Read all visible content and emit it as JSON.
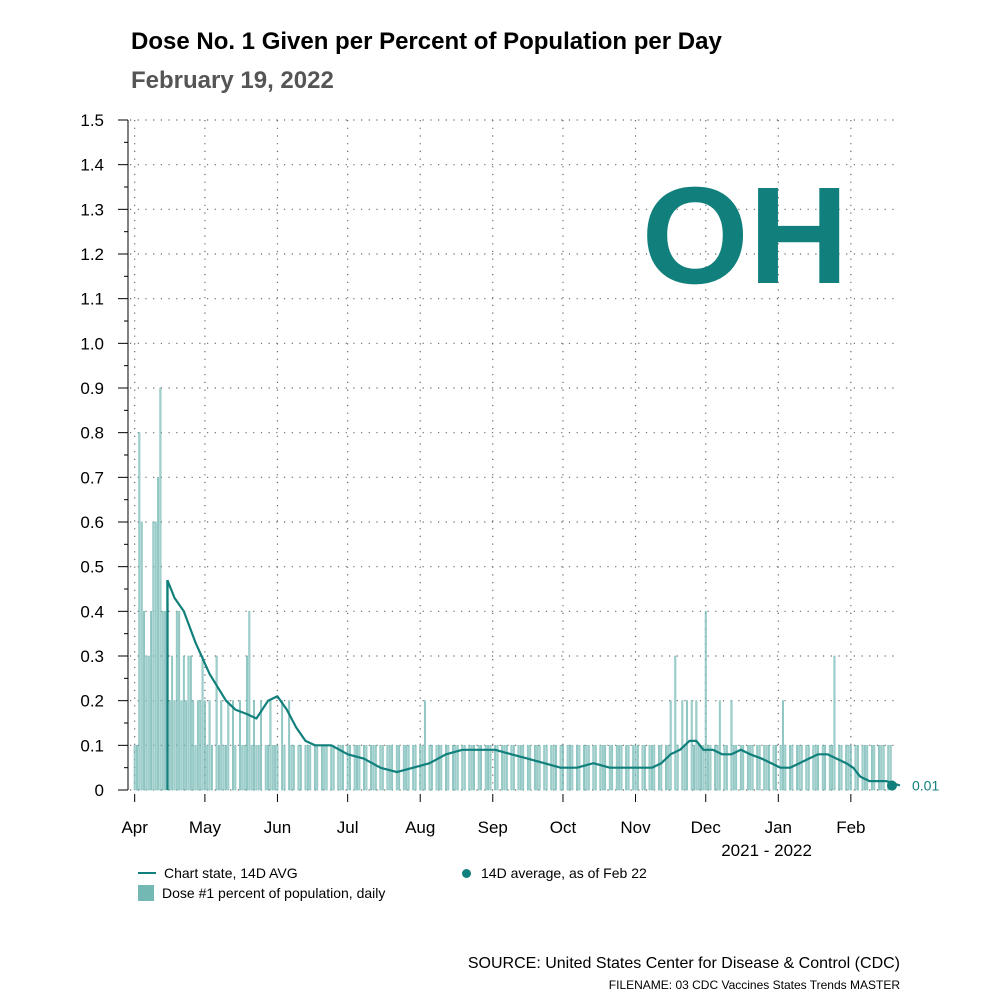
{
  "chart_data": {
    "type": "bar+line",
    "title": "Dose No. 1 Given per Percent of Population per Day",
    "subtitle": "February 19, 2022",
    "state_label": "OH",
    "ylim": [
      0,
      1.5
    ],
    "yticks": [
      "1.5",
      "1.4",
      "1.3",
      "1.2",
      "1.1",
      "1.0",
      "0.9",
      "0.8",
      "0.7",
      "0.6",
      "0.5",
      "0.4",
      "0.3",
      "0.2",
      "0.1",
      "0"
    ],
    "xlim": [
      "2021-03-30",
      "2022-02-22"
    ],
    "xticks": [
      {
        "label": "Apr",
        "date": "2021-04-01"
      },
      {
        "label": "May",
        "date": "2021-05-01"
      },
      {
        "label": "Jun",
        "date": "2021-06-01"
      },
      {
        "label": "Jul",
        "date": "2021-07-01"
      },
      {
        "label": "Aug",
        "date": "2021-08-01"
      },
      {
        "label": "Sep",
        "date": "2021-09-01"
      },
      {
        "label": "Oct",
        "date": "2021-10-01"
      },
      {
        "label": "Nov",
        "date": "2021-11-01"
      },
      {
        "label": "Dec",
        "date": "2021-12-01"
      },
      {
        "label": "Jan",
        "date": "2022-01-01"
      },
      {
        "label": "Feb",
        "date": "2022-02-01"
      }
    ],
    "xlabel": "2021 - 2022",
    "daily_bars_note": "Dose #1 percent of population, daily (values 0 to 0.1 most days; spikes listed below)",
    "daily_pattern": [
      0.1,
      0.1,
      0.0,
      0.1,
      0.1,
      0.1,
      0.0
    ],
    "daily_spikes": [
      {
        "day": 2,
        "value": 0.8
      },
      {
        "day": 3,
        "value": 0.6
      },
      {
        "day": 4,
        "value": 0.4
      },
      {
        "day": 5,
        "value": 0.3
      },
      {
        "day": 6,
        "value": 0.3
      },
      {
        "day": 7,
        "value": 0.4
      },
      {
        "day": 8,
        "value": 0.6
      },
      {
        "day": 9,
        "value": 0.6
      },
      {
        "day": 10,
        "value": 0.7
      },
      {
        "day": 11,
        "value": 0.9
      },
      {
        "day": 12,
        "value": 0.4
      },
      {
        "day": 13,
        "value": 0.4
      },
      {
        "day": 14,
        "value": 0.3
      },
      {
        "day": 15,
        "value": 0.2
      },
      {
        "day": 16,
        "value": 0.3
      },
      {
        "day": 17,
        "value": 0.2
      },
      {
        "day": 18,
        "value": 0.4
      },
      {
        "day": 19,
        "value": 0.4
      },
      {
        "day": 20,
        "value": 0.2
      },
      {
        "day": 21,
        "value": 0.3
      },
      {
        "day": 22,
        "value": 0.2
      },
      {
        "day": 23,
        "value": 0.3
      },
      {
        "day": 24,
        "value": 0.3
      },
      {
        "day": 25,
        "value": 0.2
      },
      {
        "day": 27,
        "value": 0.2
      },
      {
        "day": 28,
        "value": 0.2
      },
      {
        "day": 29,
        "value": 0.3
      },
      {
        "day": 30,
        "value": 0.2
      },
      {
        "day": 32,
        "value": 0.2
      },
      {
        "day": 35,
        "value": 0.3
      },
      {
        "day": 37,
        "value": 0.2
      },
      {
        "day": 40,
        "value": 0.2
      },
      {
        "day": 42,
        "value": 0.2
      },
      {
        "day": 45,
        "value": 0.2
      },
      {
        "day": 48,
        "value": 0.3
      },
      {
        "day": 49,
        "value": 0.4
      },
      {
        "day": 51,
        "value": 0.2
      },
      {
        "day": 54,
        "value": 0.2
      },
      {
        "day": 58,
        "value": 0.2
      },
      {
        "day": 63,
        "value": 0.2
      },
      {
        "day": 66,
        "value": 0.2
      },
      {
        "day": 124,
        "value": 0.2
      },
      {
        "day": 229,
        "value": 0.2
      },
      {
        "day": 231,
        "value": 0.3
      },
      {
        "day": 234,
        "value": 0.2
      },
      {
        "day": 236,
        "value": 0.2
      },
      {
        "day": 238,
        "value": 0.2
      },
      {
        "day": 240,
        "value": 0.2
      },
      {
        "day": 244,
        "value": 0.4
      },
      {
        "day": 250,
        "value": 0.2
      },
      {
        "day": 255,
        "value": 0.2
      },
      {
        "day": 262,
        "value": 0.1
      },
      {
        "day": 277,
        "value": 0.2
      },
      {
        "day": 290,
        "value": 0.1
      },
      {
        "day": 299,
        "value": 0.3
      },
      {
        "day": 301,
        "value": 0.1
      }
    ],
    "avg_series": {
      "name": "Chart state, 14D AVG",
      "points": [
        [
          "2021-04-15",
          0.47
        ],
        [
          "2021-04-18",
          0.43
        ],
        [
          "2021-04-22",
          0.4
        ],
        [
          "2021-04-27",
          0.33
        ],
        [
          "2021-05-03",
          0.26
        ],
        [
          "2021-05-10",
          0.2
        ],
        [
          "2021-05-14",
          0.18
        ],
        [
          "2021-05-19",
          0.17
        ],
        [
          "2021-05-23",
          0.16
        ],
        [
          "2021-05-28",
          0.2
        ],
        [
          "2021-06-01",
          0.21
        ],
        [
          "2021-06-05",
          0.18
        ],
        [
          "2021-06-09",
          0.14
        ],
        [
          "2021-06-13",
          0.11
        ],
        [
          "2021-06-17",
          0.1
        ],
        [
          "2021-06-24",
          0.1
        ],
        [
          "2021-07-01",
          0.08
        ],
        [
          "2021-07-08",
          0.07
        ],
        [
          "2021-07-15",
          0.05
        ],
        [
          "2021-07-22",
          0.04
        ],
        [
          "2021-07-29",
          0.05
        ],
        [
          "2021-08-05",
          0.06
        ],
        [
          "2021-08-12",
          0.08
        ],
        [
          "2021-08-19",
          0.09
        ],
        [
          "2021-08-26",
          0.09
        ],
        [
          "2021-09-02",
          0.09
        ],
        [
          "2021-09-09",
          0.08
        ],
        [
          "2021-09-16",
          0.07
        ],
        [
          "2021-09-23",
          0.06
        ],
        [
          "2021-09-30",
          0.05
        ],
        [
          "2021-10-07",
          0.05
        ],
        [
          "2021-10-14",
          0.06
        ],
        [
          "2021-10-21",
          0.05
        ],
        [
          "2021-10-28",
          0.05
        ],
        [
          "2021-11-04",
          0.05
        ],
        [
          "2021-11-08",
          0.05
        ],
        [
          "2021-11-12",
          0.06
        ],
        [
          "2021-11-16",
          0.08
        ],
        [
          "2021-11-20",
          0.09
        ],
        [
          "2021-11-24",
          0.11
        ],
        [
          "2021-11-27",
          0.11
        ],
        [
          "2021-11-30",
          0.09
        ],
        [
          "2021-12-04",
          0.09
        ],
        [
          "2021-12-08",
          0.08
        ],
        [
          "2021-12-12",
          0.08
        ],
        [
          "2021-12-16",
          0.09
        ],
        [
          "2021-12-20",
          0.08
        ],
        [
          "2021-12-25",
          0.07
        ],
        [
          "2021-12-29",
          0.06
        ],
        [
          "2022-01-02",
          0.05
        ],
        [
          "2022-01-06",
          0.05
        ],
        [
          "2022-01-10",
          0.06
        ],
        [
          "2022-01-14",
          0.07
        ],
        [
          "2022-01-18",
          0.08
        ],
        [
          "2022-01-22",
          0.08
        ],
        [
          "2022-01-26",
          0.07
        ],
        [
          "2022-01-30",
          0.06
        ],
        [
          "2022-02-02",
          0.05
        ],
        [
          "2022-02-05",
          0.03
        ],
        [
          "2022-02-09",
          0.02
        ],
        [
          "2022-02-13",
          0.02
        ],
        [
          "2022-02-16",
          0.02
        ],
        [
          "2022-02-22",
          0.01
        ]
      ]
    },
    "latest_point": {
      "name": "14D average, as of Feb 22",
      "date": "2022-02-22",
      "value": 0.01,
      "label": "0.01"
    },
    "colors": {
      "accent": "#11807c",
      "bar": "#74b8b4",
      "grid": "#666666",
      "axis": "#000000"
    }
  },
  "legend": {
    "avg_label": "Chart state, 14D AVG",
    "bar_label": "Dose #1 percent of population, daily",
    "dot_label": "14D average, as of Feb 22"
  },
  "footer": {
    "source": "SOURCE: United States Center for Disease & Control (CDC)",
    "filename": "FILENAME: 03 CDC Vaccines States Trends MASTER"
  }
}
